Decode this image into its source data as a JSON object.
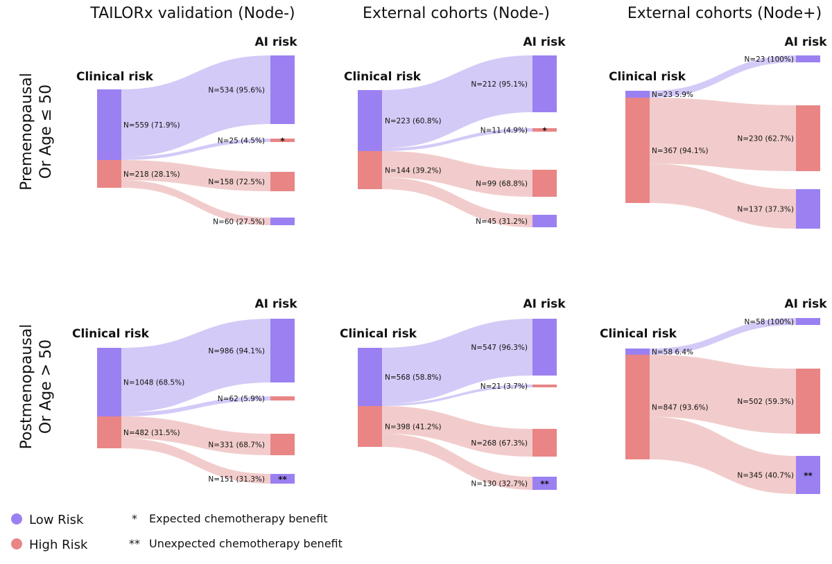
{
  "colors": {
    "low_risk": "#9b80f2",
    "high_risk": "#e98585",
    "low_flow": "#d4caf7",
    "high_flow": "#f2cccc"
  },
  "column_titles": [
    "TAILORx validation (Node-)",
    "External cohorts (Node-)",
    "External cohorts (Node+)"
  ],
  "row_labels": [
    {
      "line1": "Premenopausal",
      "line2": "Or Age  ≤ 50"
    },
    {
      "line1": "Postmenopausal",
      "line2": "Or Age  > 50"
    }
  ],
  "clinical_risk_label": "Clinical risk",
  "ai_risk_label": "AI risk",
  "legend": {
    "low": "Low Risk",
    "high": "High Risk",
    "expected_mark": "*",
    "expected": "Expected chemotherapy benefit",
    "unexpected_mark": "**",
    "unexpected": "Unexpected chemotherapy benefit"
  },
  "chart_data": [
    {
      "type": "sankey",
      "column": "TAILORx validation (Node-)",
      "row": "Premenopausal Or Age ≤ 50",
      "sources": [
        {
          "risk": "low",
          "label": "N=559 (71.9%)",
          "value": 559
        },
        {
          "risk": "high",
          "label": "N=218 (28.1%)",
          "value": 218
        }
      ],
      "targets": [
        {
          "risk": "low",
          "label": "N=534 (95.6%)",
          "value": 534,
          "mark": ""
        },
        {
          "risk": "high",
          "label": "N=25 (4.5%)",
          "value": 25,
          "mark": "*"
        },
        {
          "risk": "high",
          "label": "N=158 (72.5%)",
          "value": 158,
          "mark": ""
        },
        {
          "risk": "low",
          "label": "N=60 (27.5%)",
          "value": 60,
          "mark": ""
        }
      ]
    },
    {
      "type": "sankey",
      "column": "External cohorts (Node-)",
      "row": "Premenopausal Or Age ≤ 50",
      "sources": [
        {
          "risk": "low",
          "label": "N=223 (60.8%)",
          "value": 223
        },
        {
          "risk": "high",
          "label": "N=144 (39.2%)",
          "value": 144
        }
      ],
      "targets": [
        {
          "risk": "low",
          "label": "N=212 (95.1%)",
          "value": 212,
          "mark": ""
        },
        {
          "risk": "high",
          "label": "N=11 (4.9%)",
          "value": 11,
          "mark": "*"
        },
        {
          "risk": "high",
          "label": "N=99 (68.8%)",
          "value": 99,
          "mark": ""
        },
        {
          "risk": "low",
          "label": "N=45 (31.2%)",
          "value": 45,
          "mark": ""
        }
      ]
    },
    {
      "type": "sankey",
      "column": "External cohorts (Node+)",
      "row": "Premenopausal Or Age ≤ 50",
      "sources": [
        {
          "risk": "low",
          "label": "N=23 5.9%",
          "value": 23
        },
        {
          "risk": "high",
          "label": "N=367 (94.1%)",
          "value": 367
        }
      ],
      "targets": [
        {
          "risk": "low",
          "label": "N=23 (100%)",
          "value": 23,
          "mark": ""
        },
        {
          "risk": "high",
          "label": "N=230 (62.7%)",
          "value": 230,
          "mark": ""
        },
        {
          "risk": "low",
          "label": "N=137 (37.3%)",
          "value": 137,
          "mark": ""
        }
      ]
    },
    {
      "type": "sankey",
      "column": "TAILORx validation (Node-)",
      "row": "Postmenopausal Or Age > 50",
      "sources": [
        {
          "risk": "low",
          "label": "N=1048 (68.5%)",
          "value": 1048
        },
        {
          "risk": "high",
          "label": "N=482 (31.5%)",
          "value": 482
        }
      ],
      "targets": [
        {
          "risk": "low",
          "label": "N=986 (94.1%)",
          "value": 986,
          "mark": ""
        },
        {
          "risk": "high",
          "label": "N=62 (5.9%)",
          "value": 62,
          "mark": ""
        },
        {
          "risk": "high",
          "label": "N=331 (68.7%)",
          "value": 331,
          "mark": ""
        },
        {
          "risk": "low",
          "label": "N=151 (31.3%)",
          "value": 151,
          "mark": "**"
        }
      ]
    },
    {
      "type": "sankey",
      "column": "External cohorts (Node-)",
      "row": "Postmenopausal Or Age > 50",
      "sources": [
        {
          "risk": "low",
          "label": "N=568 (58.8%)",
          "value": 568
        },
        {
          "risk": "high",
          "label": "N=398 (41.2%)",
          "value": 398
        }
      ],
      "targets": [
        {
          "risk": "low",
          "label": "N=547 (96.3%)",
          "value": 547,
          "mark": ""
        },
        {
          "risk": "high",
          "label": "N=21 (3.7%)",
          "value": 21,
          "mark": ""
        },
        {
          "risk": "high",
          "label": "N=268 (67.3%)",
          "value": 268,
          "mark": ""
        },
        {
          "risk": "low",
          "label": "N=130 (32.7%)",
          "value": 130,
          "mark": "**"
        }
      ]
    },
    {
      "type": "sankey",
      "column": "External cohorts (Node+)",
      "row": "Postmenopausal Or Age > 50",
      "sources": [
        {
          "risk": "low",
          "label": "N=58 6.4%",
          "value": 58
        },
        {
          "risk": "high",
          "label": "N=847 (93.6%)",
          "value": 847
        }
      ],
      "targets": [
        {
          "risk": "low",
          "label": "N=58 (100%)",
          "value": 58,
          "mark": ""
        },
        {
          "risk": "high",
          "label": "N=502 (59.3%)",
          "value": 502,
          "mark": ""
        },
        {
          "risk": "low",
          "label": "N=345 (40.7%)",
          "value": 345,
          "mark": "**"
        }
      ]
    }
  ]
}
